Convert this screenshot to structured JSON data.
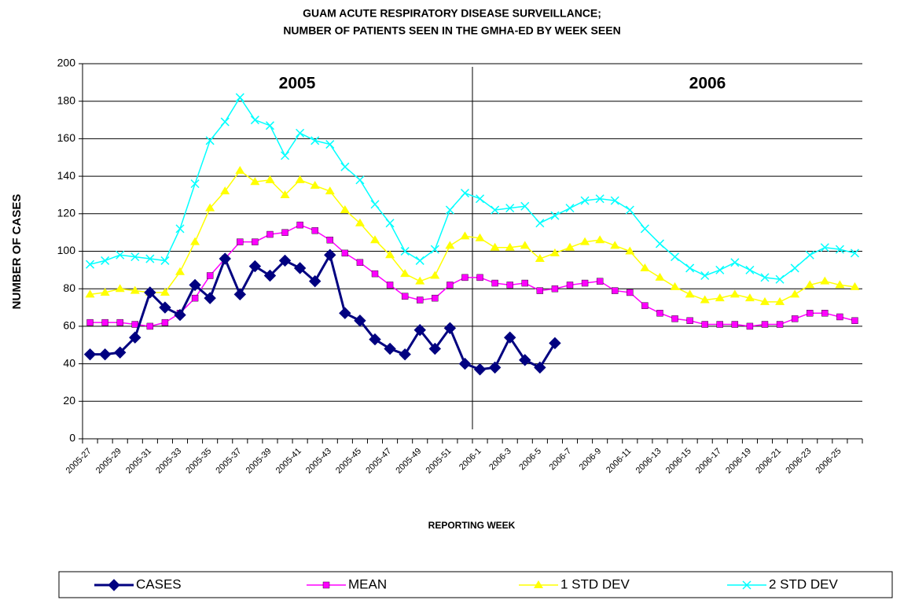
{
  "chart_data": {
    "type": "line",
    "title": "GUAM ACUTE RESPIRATORY DISEASE SURVEILLANCE;",
    "subtitle": "NUMBER OF PATIENTS SEEN IN THE GMHA-ED BY WEEK SEEN",
    "x_label": "REPORTING WEEK",
    "y_label": "NUMBER OF CASES",
    "annotations": [
      "2005",
      "2006"
    ],
    "categories": [
      "2005-27",
      null,
      "2005-29",
      null,
      "2005-31",
      null,
      "2005-33",
      null,
      "2005-35",
      null,
      "2005-37",
      null,
      "2005-39",
      null,
      "2005-41",
      null,
      "2005-43",
      null,
      "2005-45",
      null,
      "2005-47",
      null,
      "2005-49",
      null,
      "2005-51",
      null,
      "2006-1",
      null,
      "2006-3",
      null,
      "2006-5",
      null,
      "2006-7",
      null,
      "2006-9",
      null,
      "2006-11",
      null,
      "2006-13",
      null,
      "2006-15",
      null,
      "2006-17",
      null,
      "2006-19",
      null,
      "2006-21",
      null,
      "2006-23",
      null,
      "2006-25",
      null
    ],
    "series": [
      {
        "name": "CASES",
        "color": "#000080",
        "marker": "diamond",
        "values": [
          45,
          45,
          46,
          54,
          78,
          70,
          66,
          82,
          75,
          96,
          77,
          92,
          87,
          95,
          91,
          84,
          98,
          67,
          63,
          53,
          48,
          45,
          58,
          48,
          59,
          40,
          37,
          38,
          54,
          42,
          38,
          51,
          null,
          null,
          null,
          null,
          null,
          null,
          null,
          null,
          null,
          null,
          null,
          null,
          null,
          null,
          null,
          null,
          null,
          null,
          null,
          null
        ]
      },
      {
        "name": "MEAN",
        "color": "#FF00FF",
        "marker": "square",
        "values": [
          62,
          62,
          62,
          61,
          60,
          62,
          67,
          75,
          87,
          96,
          105,
          105,
          109,
          110,
          114,
          111,
          106,
          99,
          94,
          88,
          82,
          76,
          74,
          75,
          82,
          86,
          86,
          83,
          82,
          83,
          79,
          80,
          82,
          83,
          84,
          79,
          78,
          71,
          67,
          64,
          63,
          61,
          61,
          61,
          60,
          61,
          61,
          64,
          67,
          67,
          65,
          63
        ]
      },
      {
        "name": "1 STD DEV",
        "color": "#FFFF00",
        "marker": "triangle",
        "values": [
          77,
          78,
          80,
          79,
          78,
          78,
          89,
          105,
          123,
          132,
          143,
          137,
          138,
          130,
          138,
          135,
          132,
          122,
          115,
          106,
          98,
          88,
          84,
          87,
          103,
          108,
          107,
          102,
          102,
          103,
          96,
          99,
          102,
          105,
          106,
          103,
          100,
          91,
          86,
          81,
          77,
          74,
          75,
          77,
          75,
          73,
          73,
          77,
          82,
          84,
          82,
          81
        ]
      },
      {
        "name": "2 STD DEV",
        "color": "#00FFFF",
        "marker": "x",
        "values": [
          93,
          95,
          98,
          97,
          96,
          95,
          112,
          136,
          159,
          169,
          182,
          170,
          167,
          151,
          163,
          159,
          157,
          145,
          138,
          125,
          115,
          100,
          95,
          101,
          122,
          131,
          128,
          122,
          123,
          124,
          115,
          119,
          123,
          127,
          128,
          127,
          122,
          112,
          104,
          97,
          91,
          87,
          90,
          94,
          90,
          86,
          85,
          91,
          98,
          102,
          101,
          99
        ]
      }
    ],
    "ylim": [
      0,
      200
    ],
    "yticks": [
      0,
      20,
      40,
      60,
      80,
      100,
      120,
      140,
      160,
      180,
      200
    ],
    "grid": true,
    "legend": "bottom"
  }
}
